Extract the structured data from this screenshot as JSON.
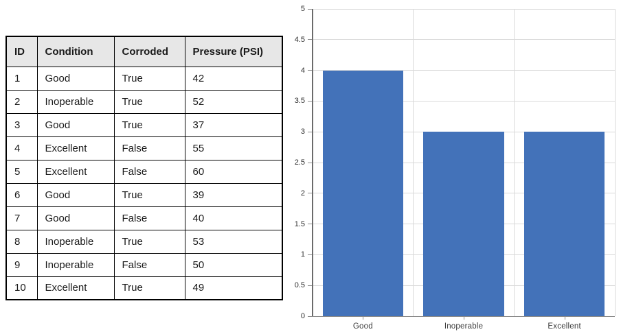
{
  "table": {
    "headers": [
      "ID",
      "Condition",
      "Corroded",
      "Pressure (PSI)"
    ],
    "rows": [
      [
        "1",
        "Good",
        "True",
        "42"
      ],
      [
        "2",
        "Inoperable",
        "True",
        "52"
      ],
      [
        "3",
        "Good",
        "True",
        "37"
      ],
      [
        "4",
        "Excellent",
        "False",
        "55"
      ],
      [
        "5",
        "Excellent",
        "False",
        "60"
      ],
      [
        "6",
        "Good",
        "True",
        "39"
      ],
      [
        "7",
        "Good",
        "False",
        "40"
      ],
      [
        "8",
        "Inoperable",
        "True",
        "53"
      ],
      [
        "9",
        "Inoperable",
        "False",
        "50"
      ],
      [
        "10",
        "Excellent",
        "True",
        "49"
      ]
    ],
    "header_bg": "#e7e7e7",
    "border_color": "#000000"
  },
  "chart_data": {
    "type": "bar",
    "categories": [
      "Good",
      "Inoperable",
      "Excellent"
    ],
    "values": [
      4,
      3,
      3
    ],
    "title": "",
    "xlabel": "",
    "ylabel": "",
    "ylim": [
      0,
      5
    ],
    "ytick_step": 0.5,
    "ytick_labels": [
      "0",
      "0.5",
      "1",
      "1.5",
      "2",
      "2.5",
      "3",
      "3.5",
      "4",
      "4.5",
      "5"
    ],
    "grid": true,
    "legend_position": "none",
    "bar_color": "#4372b9",
    "gridline_color": "#d9d9d9",
    "axis_color": "#8a8a8a",
    "bar_width_fraction": 0.8
  }
}
